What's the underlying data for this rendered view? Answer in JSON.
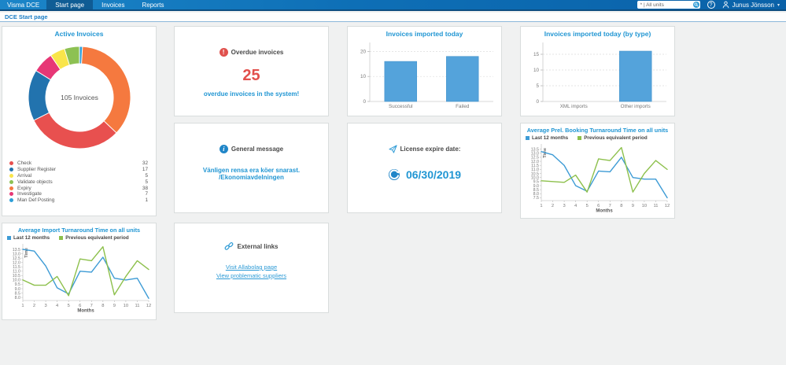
{
  "nav": {
    "brand": "Visma DCE",
    "items": [
      {
        "label": "Start page",
        "active": true
      },
      {
        "label": "Invoices",
        "active": false
      },
      {
        "label": "Reports",
        "active": false
      }
    ],
    "unit_selector": "* | All units",
    "user": "Junus Jönsson"
  },
  "breadcrumb": "DCE Start page",
  "colors": {
    "accent_blue": "#2196d3",
    "alert_red": "#e2504c",
    "bar_blue": "#54a3db",
    "line_blue": "#3d9bd5",
    "line_green": "#8dc04c"
  },
  "widgets": {
    "overdue": {
      "title": "Overdue invoices",
      "count": "25",
      "message": "overdue invoices in the system!"
    },
    "general_message": {
      "title": "General message",
      "message": "Vänligen rensa era köer snarast. /Ekonomiavdelningen"
    },
    "license": {
      "title": "License expire date:",
      "date": "06/30/2019"
    },
    "external_links": {
      "title": "External links",
      "links": [
        "Visit Allabolag page",
        "View problematic suppliers"
      ]
    }
  },
  "chart_data": [
    {
      "id": "active-invoices",
      "type": "pie",
      "title": "Active Invoices",
      "center_label": "105 Invoices",
      "total": 105,
      "slices": [
        {
          "label": "Check",
          "value": 32,
          "color": "#e8504f"
        },
        {
          "label": "Supplier Register",
          "value": 17,
          "color": "#2273ae"
        },
        {
          "label": "Arrival",
          "value": 5,
          "color": "#f9e54b"
        },
        {
          "label": "Validate objects",
          "value": 5,
          "color": "#8dc153"
        },
        {
          "label": "Expiry",
          "value": 38,
          "color": "#f5793f"
        },
        {
          "label": "Investigate",
          "value": 7,
          "color": "#e73776"
        },
        {
          "label": "Man Def Posting",
          "value": 1,
          "color": "#2d9fd8"
        }
      ],
      "draw_order": [
        6,
        4,
        0,
        1,
        5,
        2,
        3
      ],
      "legend_position": "bottom-left"
    },
    {
      "id": "imported-today",
      "type": "bar",
      "title": "Invoices imported today",
      "categories": [
        "Successful",
        "Failed"
      ],
      "values": [
        16,
        18
      ],
      "yticks": [
        0,
        10,
        20
      ],
      "ymax": 22,
      "bar_color": "#54a3db"
    },
    {
      "id": "imported-by-type",
      "type": "bar",
      "title": "Invoices imported today (by type)",
      "categories": [
        "XML imports",
        "Other imports"
      ],
      "values": [
        0,
        16
      ],
      "yticks": [
        0,
        5,
        10,
        15
      ],
      "ymax": 17.5,
      "bar_color": "#54a3db"
    },
    {
      "id": "prel-booking",
      "type": "line",
      "title": "Average Prel. Booking Turnaround Time on all units",
      "xlabel": "Months",
      "ylabel": "Time",
      "x": [
        1,
        2,
        3,
        4,
        5,
        6,
        7,
        8,
        9,
        10,
        11,
        12
      ],
      "ymin": 7.5,
      "ymax": 13.5,
      "ystep": 0.5,
      "series": [
        {
          "name": "Last 12 months",
          "color": "#3d9bd5",
          "values": [
            13.2,
            12.8,
            11.5,
            9.0,
            8.3,
            10.8,
            10.7,
            12.5,
            10.0,
            9.8,
            9.8,
            7.5
          ]
        },
        {
          "name": "Previous equivalent period",
          "color": "#8dc04c",
          "values": [
            9.6,
            9.5,
            9.4,
            10.3,
            8.2,
            12.3,
            12.1,
            13.7,
            8.2,
            10.5,
            12.1,
            11.0
          ]
        }
      ]
    },
    {
      "id": "import-turnaround",
      "type": "line",
      "title": "Average Import Turnaround Time on all units",
      "xlabel": "Months",
      "ylabel": "Time",
      "x": [
        1,
        2,
        3,
        4,
        5,
        6,
        7,
        8,
        9,
        10,
        11,
        12
      ],
      "ymin": 8.0,
      "ymax": 13.5,
      "ystep": 0.5,
      "series": [
        {
          "name": "Last 12 months",
          "color": "#3d9bd5",
          "values": [
            13.5,
            13.3,
            11.6,
            9.1,
            8.4,
            11.0,
            10.9,
            12.6,
            10.2,
            10.0,
            10.2,
            7.9
          ]
        },
        {
          "name": "Previous equivalent period",
          "color": "#8dc04c",
          "values": [
            10.0,
            9.4,
            9.4,
            10.4,
            8.2,
            12.4,
            12.2,
            13.8,
            8.3,
            10.4,
            12.2,
            11.2
          ]
        }
      ]
    }
  ]
}
